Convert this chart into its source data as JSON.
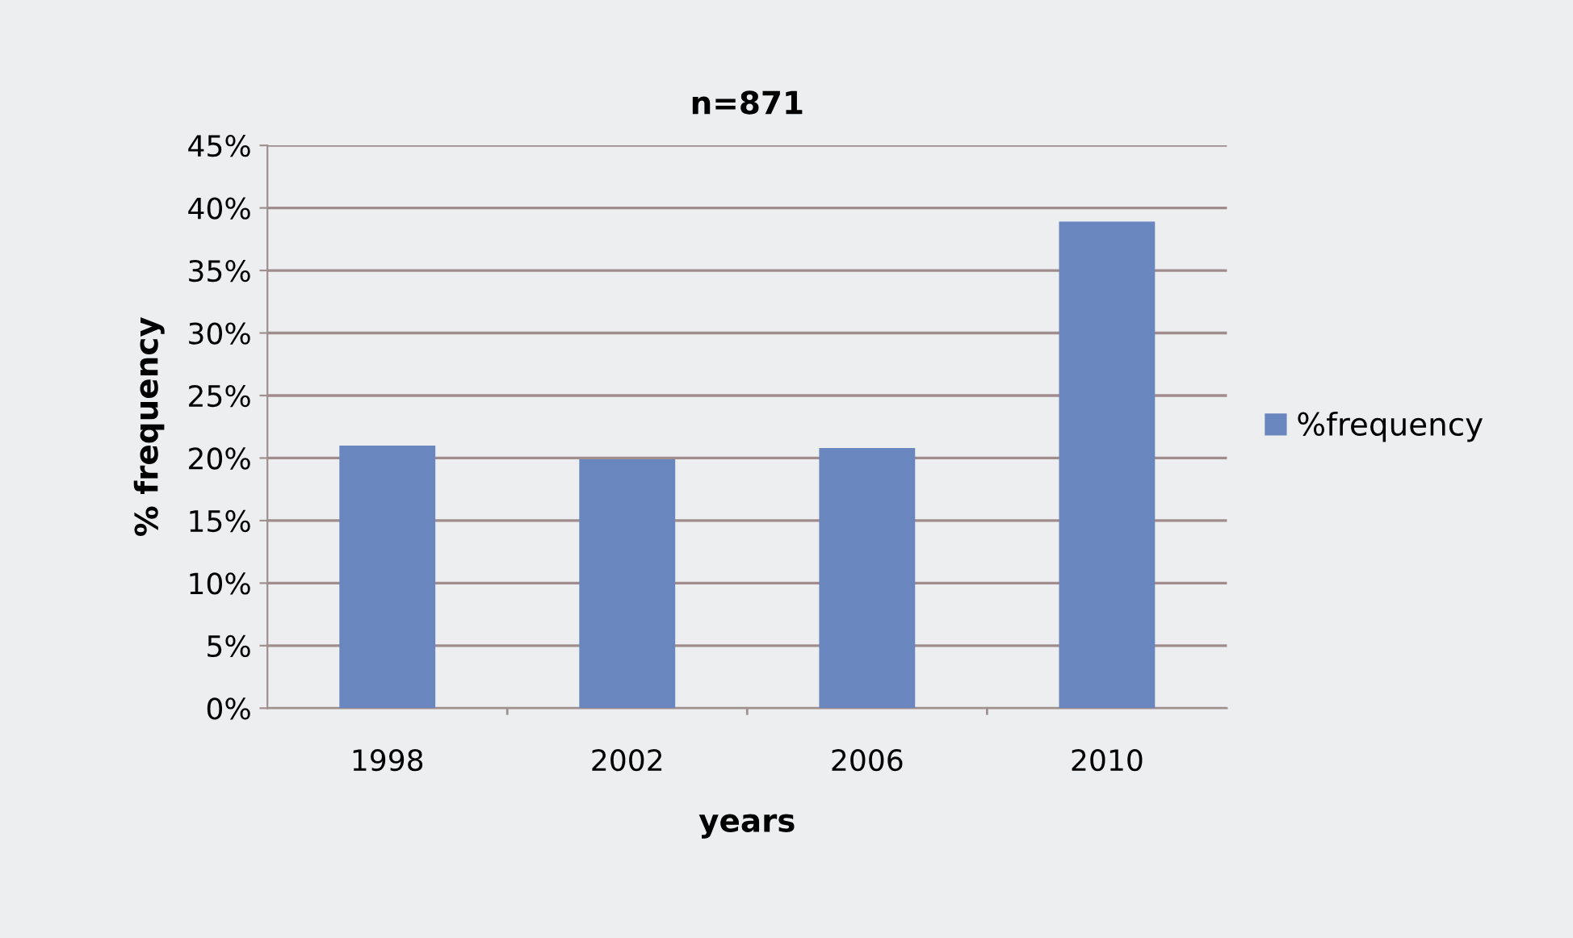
{
  "chart_data": {
    "type": "bar",
    "title": "n=871",
    "xlabel": "years",
    "ylabel": "% frequency",
    "categories": [
      "1998",
      "2002",
      "2006",
      "2010"
    ],
    "series": [
      {
        "name": "%frequency",
        "color": "#6a86bf",
        "values": [
          21.0,
          19.9,
          20.8,
          38.9
        ]
      }
    ],
    "ylim": [
      0,
      45
    ],
    "yticks": [
      {
        "value": 0,
        "label": "0%"
      },
      {
        "value": 5,
        "label": "5%"
      },
      {
        "value": 10,
        "label": "10%"
      },
      {
        "value": 15,
        "label": "15%"
      },
      {
        "value": 20,
        "label": "20%"
      },
      {
        "value": 25,
        "label": "25%"
      },
      {
        "value": 30,
        "label": "30%"
      },
      {
        "value": 35,
        "label": "35%"
      },
      {
        "value": 40,
        "label": "40%"
      },
      {
        "value": 45,
        "label": "45%"
      }
    ],
    "grid": "y",
    "legend": "right"
  }
}
